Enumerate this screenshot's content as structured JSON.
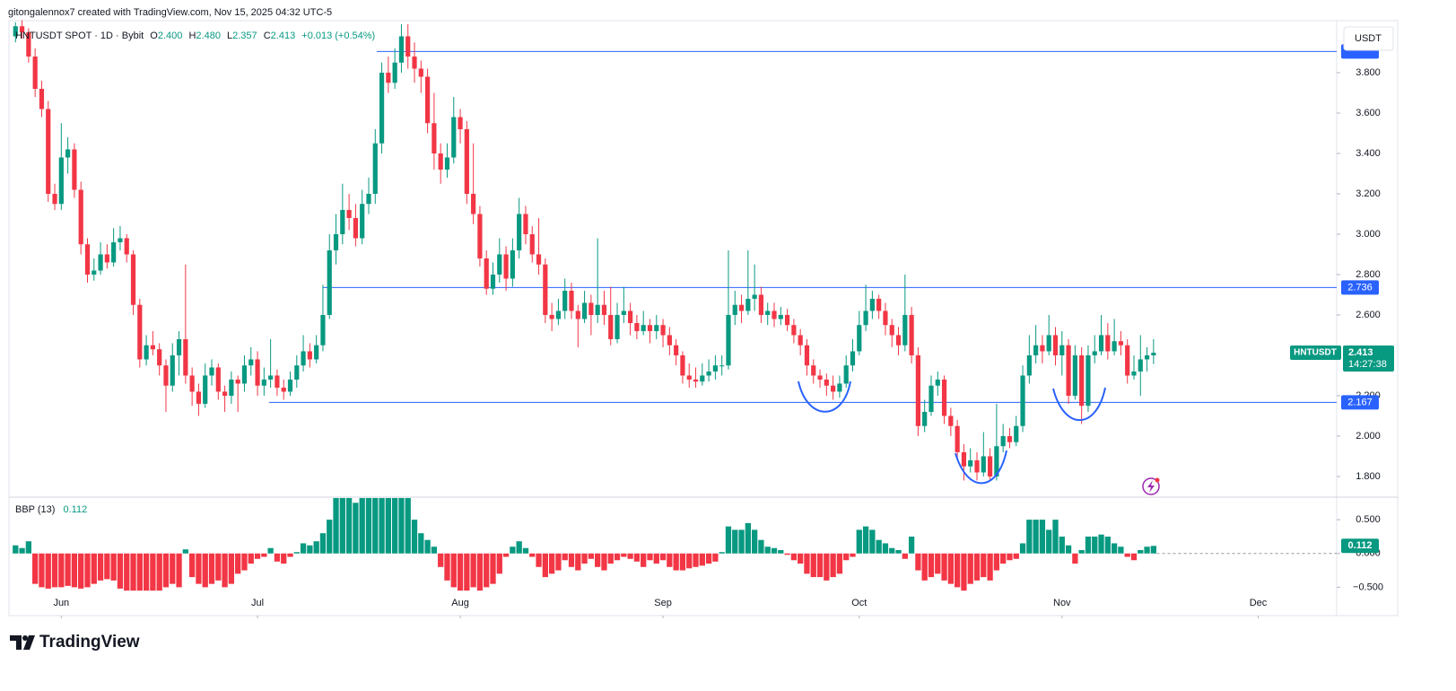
{
  "header": {
    "text": "gitongalennox7 created with TradingView.com, Nov 15, 2025 04:32 UTC-5"
  },
  "footer": {
    "brand": "TradingView"
  },
  "chart_data": [
    {
      "type": "candlestick",
      "title": "HNTUSDT SPOT · 1D · Bybit",
      "ohlc": [
        {
          "label": "O",
          "value": "2.400"
        },
        {
          "label": "H",
          "value": "2.480"
        },
        {
          "label": "L",
          "value": "2.357"
        },
        {
          "label": "C",
          "value": "2.413"
        }
      ],
      "change": "+0.013 (+0.54%)",
      "currency": "USDT",
      "last_price": {
        "symbol": "HNTUSDT",
        "value": "2.413",
        "countdown": "14:27:38"
      },
      "up_color": "#089981",
      "down_color": "#f23645",
      "line_color": "#2962ff",
      "grid": false,
      "xlim": [
        -1,
        202
      ],
      "ylim": [
        1.702,
        4.04
      ],
      "yticks": [
        {
          "value": 1.8,
          "label": "1.800"
        },
        {
          "value": 2.0,
          "label": "2.000"
        },
        {
          "value": 2.2,
          "label": "2.200"
        },
        {
          "value": 2.6,
          "label": "2.600"
        },
        {
          "value": 2.8,
          "label": "2.800"
        },
        {
          "value": 3.0,
          "label": "3.000"
        },
        {
          "value": 3.2,
          "label": "3.200"
        },
        {
          "value": 3.4,
          "label": "3.400"
        },
        {
          "value": 3.6,
          "label": "3.600"
        },
        {
          "value": 3.8,
          "label": "3.800"
        }
      ],
      "horizontal_lines": [
        3.905,
        2.736,
        2.167
      ],
      "candles": [
        [
          3.98,
          4.05,
          3.95,
          4.03
        ],
        [
          4.03,
          4.06,
          3.97,
          4.0
        ],
        [
          4.0,
          4.02,
          3.85,
          3.88
        ],
        [
          3.88,
          3.92,
          3.68,
          3.72
        ],
        [
          3.72,
          3.76,
          3.58,
          3.62
        ],
        [
          3.62,
          3.66,
          3.16,
          3.2
        ],
        [
          3.2,
          3.25,
          3.12,
          3.15
        ],
        [
          3.15,
          3.55,
          3.12,
          3.38
        ],
        [
          3.38,
          3.48,
          3.3,
          3.42
        ],
        [
          3.42,
          3.45,
          3.18,
          3.22
        ],
        [
          3.22,
          3.26,
          2.9,
          2.95
        ],
        [
          2.95,
          2.98,
          2.76,
          2.8
        ],
        [
          2.8,
          2.88,
          2.77,
          2.82
        ],
        [
          2.82,
          2.96,
          2.8,
          2.9
        ],
        [
          2.9,
          2.95,
          2.83,
          2.86
        ],
        [
          2.86,
          3.03,
          2.84,
          2.96
        ],
        [
          2.96,
          3.04,
          2.92,
          2.98
        ],
        [
          2.98,
          3.0,
          2.86,
          2.9
        ],
        [
          2.9,
          2.92,
          2.6,
          2.65
        ],
        [
          2.65,
          2.68,
          2.34,
          2.38
        ],
        [
          2.38,
          2.5,
          2.35,
          2.45
        ],
        [
          2.45,
          2.52,
          2.4,
          2.43
        ],
        [
          2.43,
          2.46,
          2.3,
          2.35
        ],
        [
          2.35,
          2.38,
          2.12,
          2.25
        ],
        [
          2.25,
          2.46,
          2.22,
          2.4
        ],
        [
          2.4,
          2.52,
          2.3,
          2.48
        ],
        [
          2.48,
          2.85,
          2.26,
          2.3
        ],
        [
          2.3,
          2.34,
          2.15,
          2.22
        ],
        [
          2.22,
          2.26,
          2.1,
          2.16
        ],
        [
          2.16,
          2.36,
          2.14,
          2.3
        ],
        [
          2.3,
          2.38,
          2.25,
          2.34
        ],
        [
          2.34,
          2.36,
          2.18,
          2.22
        ],
        [
          2.22,
          2.25,
          2.12,
          2.2
        ],
        [
          2.2,
          2.32,
          2.16,
          2.28
        ],
        [
          2.28,
          2.3,
          2.12,
          2.26
        ],
        [
          2.26,
          2.4,
          2.22,
          2.35
        ],
        [
          2.35,
          2.44,
          2.3,
          2.38
        ],
        [
          2.38,
          2.42,
          2.2,
          2.25
        ],
        [
          2.25,
          2.34,
          2.2,
          2.28
        ],
        [
          2.28,
          2.48,
          2.24,
          2.3
        ],
        [
          2.3,
          2.33,
          2.2,
          2.24
        ],
        [
          2.24,
          2.28,
          2.18,
          2.22
        ],
        [
          2.22,
          2.32,
          2.2,
          2.28
        ],
        [
          2.28,
          2.4,
          2.24,
          2.35
        ],
        [
          2.35,
          2.5,
          2.32,
          2.42
        ],
        [
          2.42,
          2.46,
          2.34,
          2.38
        ],
        [
          2.38,
          2.5,
          2.36,
          2.45
        ],
        [
          2.45,
          2.75,
          2.42,
          2.6
        ],
        [
          2.6,
          3.0,
          2.58,
          2.92
        ],
        [
          2.92,
          3.1,
          2.85,
          3.0
        ],
        [
          3.0,
          3.25,
          2.95,
          3.12
        ],
        [
          3.12,
          3.2,
          3.02,
          3.08
        ],
        [
          3.08,
          3.15,
          2.94,
          2.98
        ],
        [
          2.98,
          3.22,
          2.95,
          3.15
        ],
        [
          3.15,
          3.28,
          3.1,
          3.2
        ],
        [
          3.2,
          3.52,
          3.15,
          3.45
        ],
        [
          3.45,
          3.85,
          3.4,
          3.8
        ],
        [
          3.8,
          3.88,
          3.7,
          3.75
        ],
        [
          3.75,
          3.92,
          3.72,
          3.85
        ],
        [
          3.85,
          4.04,
          3.8,
          3.98
        ],
        [
          3.98,
          4.04,
          3.82,
          3.88
        ],
        [
          3.88,
          3.95,
          3.75,
          3.82
        ],
        [
          3.82,
          3.86,
          3.7,
          3.78
        ],
        [
          3.78,
          3.82,
          3.5,
          3.55
        ],
        [
          3.55,
          3.7,
          3.32,
          3.4
        ],
        [
          3.4,
          3.45,
          3.25,
          3.32
        ],
        [
          3.32,
          3.45,
          3.28,
          3.38
        ],
        [
          3.38,
          3.68,
          3.35,
          3.58
        ],
        [
          3.58,
          3.62,
          3.45,
          3.52
        ],
        [
          3.52,
          3.56,
          3.15,
          3.2
        ],
        [
          3.2,
          3.45,
          3.05,
          3.1
        ],
        [
          3.1,
          3.14,
          2.84,
          2.88
        ],
        [
          2.88,
          2.92,
          2.7,
          2.73
        ],
        [
          2.73,
          2.86,
          2.7,
          2.8
        ],
        [
          2.8,
          2.98,
          2.76,
          2.9
        ],
        [
          2.9,
          2.94,
          2.72,
          2.78
        ],
        [
          2.78,
          2.98,
          2.74,
          2.92
        ],
        [
          2.92,
          3.18,
          2.88,
          3.1
        ],
        [
          3.1,
          3.14,
          2.95,
          3.0
        ],
        [
          3.0,
          3.04,
          2.86,
          2.9
        ],
        [
          2.9,
          3.08,
          2.8,
          2.85
        ],
        [
          2.85,
          2.88,
          2.56,
          2.6
        ],
        [
          2.6,
          2.66,
          2.52,
          2.58
        ],
        [
          2.58,
          2.68,
          2.55,
          2.62
        ],
        [
          2.62,
          2.78,
          2.58,
          2.72
        ],
        [
          2.72,
          2.76,
          2.58,
          2.62
        ],
        [
          2.62,
          2.65,
          2.44,
          2.58
        ],
        [
          2.58,
          2.72,
          2.56,
          2.66
        ],
        [
          2.66,
          2.7,
          2.5,
          2.6
        ],
        [
          2.6,
          2.98,
          2.56,
          2.65
        ],
        [
          2.65,
          2.72,
          2.55,
          2.6
        ],
        [
          2.6,
          2.74,
          2.45,
          2.48
        ],
        [
          2.48,
          2.66,
          2.46,
          2.6
        ],
        [
          2.6,
          2.74,
          2.56,
          2.62
        ],
        [
          2.62,
          2.66,
          2.5,
          2.56
        ],
        [
          2.56,
          2.6,
          2.48,
          2.52
        ],
        [
          2.52,
          2.62,
          2.5,
          2.55
        ],
        [
          2.55,
          2.58,
          2.46,
          2.52
        ],
        [
          2.52,
          2.6,
          2.48,
          2.55
        ],
        [
          2.55,
          2.58,
          2.44,
          2.5
        ],
        [
          2.5,
          2.54,
          2.4,
          2.45
        ],
        [
          2.45,
          2.48,
          2.35,
          2.4
        ],
        [
          2.4,
          2.42,
          2.26,
          2.3
        ],
        [
          2.3,
          2.36,
          2.24,
          2.28
        ],
        [
          2.28,
          2.34,
          2.24,
          2.27
        ],
        [
          2.27,
          2.36,
          2.25,
          2.3
        ],
        [
          2.3,
          2.38,
          2.27,
          2.32
        ],
        [
          2.32,
          2.4,
          2.28,
          2.35
        ],
        [
          2.35,
          2.4,
          2.3,
          2.35
        ],
        [
          2.35,
          2.92,
          2.33,
          2.6
        ],
        [
          2.6,
          2.72,
          2.55,
          2.65
        ],
        [
          2.65,
          2.7,
          2.56,
          2.62
        ],
        [
          2.62,
          2.92,
          2.6,
          2.68
        ],
        [
          2.68,
          2.85,
          2.62,
          2.7
        ],
        [
          2.7,
          2.74,
          2.56,
          2.6
        ],
        [
          2.6,
          2.66,
          2.55,
          2.62
        ],
        [
          2.62,
          2.66,
          2.54,
          2.58
        ],
        [
          2.58,
          2.64,
          2.55,
          2.6
        ],
        [
          2.6,
          2.63,
          2.52,
          2.55
        ],
        [
          2.55,
          2.58,
          2.46,
          2.5
        ],
        [
          2.5,
          2.53,
          2.4,
          2.45
        ],
        [
          2.45,
          2.48,
          2.3,
          2.35
        ],
        [
          2.35,
          2.38,
          2.26,
          2.3
        ],
        [
          2.3,
          2.33,
          2.24,
          2.28
        ],
        [
          2.28,
          2.31,
          2.2,
          2.25
        ],
        [
          2.25,
          2.3,
          2.18,
          2.22
        ],
        [
          2.22,
          2.3,
          2.19,
          2.26
        ],
        [
          2.26,
          2.4,
          2.24,
          2.35
        ],
        [
          2.35,
          2.48,
          2.32,
          2.42
        ],
        [
          2.42,
          2.62,
          2.4,
          2.55
        ],
        [
          2.55,
          2.75,
          2.52,
          2.62
        ],
        [
          2.62,
          2.72,
          2.58,
          2.68
        ],
        [
          2.68,
          2.7,
          2.58,
          2.62
        ],
        [
          2.62,
          2.66,
          2.5,
          2.55
        ],
        [
          2.55,
          2.58,
          2.44,
          2.5
        ],
        [
          2.5,
          2.54,
          2.4,
          2.45
        ],
        [
          2.45,
          2.8,
          2.42,
          2.6
        ],
        [
          2.6,
          2.64,
          2.36,
          2.4
        ],
        [
          2.4,
          2.44,
          2.0,
          2.05
        ],
        [
          2.05,
          2.18,
          2.02,
          2.12
        ],
        [
          2.12,
          2.3,
          2.1,
          2.25
        ],
        [
          2.25,
          2.32,
          2.2,
          2.28
        ],
        [
          2.28,
          2.3,
          2.06,
          2.1
        ],
        [
          2.1,
          2.14,
          2.0,
          2.05
        ],
        [
          2.05,
          2.08,
          1.88,
          1.92
        ],
        [
          1.92,
          1.96,
          1.78,
          1.85
        ],
        [
          1.85,
          1.94,
          1.82,
          1.88
        ],
        [
          1.88,
          1.92,
          1.78,
          1.82
        ],
        [
          1.82,
          2.02,
          1.8,
          1.9
        ],
        [
          1.9,
          1.94,
          1.78,
          1.8
        ],
        [
          1.8,
          2.16,
          1.78,
          1.95
        ],
        [
          1.95,
          2.06,
          1.92,
          2.0
        ],
        [
          2.0,
          2.04,
          1.94,
          1.97
        ],
        [
          1.97,
          2.1,
          1.95,
          2.05
        ],
        [
          2.05,
          2.35,
          2.02,
          2.3
        ],
        [
          2.3,
          2.5,
          2.26,
          2.4
        ],
        [
          2.4,
          2.55,
          2.36,
          2.45
        ],
        [
          2.45,
          2.5,
          2.36,
          2.42
        ],
        [
          2.42,
          2.6,
          2.4,
          2.5
        ],
        [
          2.5,
          2.54,
          2.35,
          2.4
        ],
        [
          2.4,
          2.52,
          2.3,
          2.45
        ],
        [
          2.45,
          2.48,
          2.16,
          2.2
        ],
        [
          2.2,
          2.45,
          2.18,
          2.4
        ],
        [
          2.4,
          2.44,
          2.06,
          2.15
        ],
        [
          2.15,
          2.45,
          2.12,
          2.4
        ],
        [
          2.4,
          2.5,
          2.36,
          2.42
        ],
        [
          2.42,
          2.6,
          2.4,
          2.5
        ],
        [
          2.5,
          2.56,
          2.38,
          2.42
        ],
        [
          2.42,
          2.58,
          2.4,
          2.47
        ],
        [
          2.47,
          2.52,
          2.4,
          2.45
        ],
        [
          2.45,
          2.48,
          2.26,
          2.3
        ],
        [
          2.3,
          2.4,
          2.28,
          2.32
        ],
        [
          2.32,
          2.5,
          2.2,
          2.38
        ],
        [
          2.38,
          2.44,
          2.32,
          2.4
        ],
        [
          2.4,
          2.48,
          2.357,
          2.413
        ]
      ]
    },
    {
      "type": "bar",
      "title": "BBP (13)",
      "value_label": "0.112",
      "up_color": "#089981",
      "down_color": "#f23645",
      "xlim": [
        -1,
        202
      ],
      "ylim": [
        -0.92,
        0.82
      ],
      "yticks": [
        {
          "value": 0.5,
          "label": "0.500"
        },
        {
          "value": 0.0,
          "label": "0.000"
        },
        {
          "value": -0.5,
          "label": "−0.500"
        }
      ],
      "xticks": [
        {
          "value": 7,
          "label": "Jun"
        },
        {
          "value": 37,
          "label": "Jul"
        },
        {
          "value": 68,
          "label": "Aug"
        },
        {
          "value": 99,
          "label": "Sep"
        },
        {
          "value": 129,
          "label": "Oct"
        },
        {
          "value": 160,
          "label": "Nov"
        },
        {
          "value": 190,
          "label": "Dec"
        }
      ],
      "values": [
        0.12,
        0.08,
        0.18,
        -0.45,
        -0.5,
        -0.52,
        -0.5,
        -0.5,
        -0.48,
        -0.5,
        -0.52,
        -0.5,
        -0.45,
        -0.4,
        -0.38,
        -0.4,
        -0.52,
        -0.55,
        -0.55,
        -0.55,
        -0.55,
        -0.55,
        -0.55,
        -0.5,
        -0.45,
        -0.5,
        0.06,
        -0.35,
        -0.45,
        -0.5,
        -0.45,
        -0.4,
        -0.5,
        -0.45,
        -0.3,
        -0.25,
        -0.15,
        -0.08,
        -0.05,
        0.08,
        -0.12,
        -0.15,
        -0.05,
        0.02,
        0.15,
        0.12,
        0.18,
        0.3,
        0.5,
        0.82,
        0.82,
        0.82,
        0.75,
        0.82,
        0.82,
        0.82,
        0.82,
        0.82,
        0.82,
        0.82,
        0.82,
        0.5,
        0.3,
        0.2,
        0.1,
        -0.2,
        -0.4,
        -0.5,
        -0.55,
        -0.55,
        -0.5,
        -0.55,
        -0.5,
        -0.45,
        -0.3,
        -0.05,
        0.1,
        0.18,
        0.08,
        -0.05,
        -0.2,
        -0.35,
        -0.3,
        -0.25,
        -0.1,
        -0.2,
        -0.25,
        -0.15,
        -0.08,
        -0.2,
        -0.25,
        -0.15,
        -0.1,
        -0.05,
        -0.08,
        -0.12,
        -0.2,
        -0.1,
        -0.15,
        -0.1,
        -0.2,
        -0.25,
        -0.25,
        -0.22,
        -0.2,
        -0.18,
        -0.15,
        -0.12,
        0.02,
        0.4,
        0.35,
        0.35,
        0.45,
        0.35,
        0.2,
        0.1,
        0.08,
        0.05,
        -0.02,
        -0.1,
        -0.15,
        -0.3,
        -0.35,
        -0.35,
        -0.4,
        -0.35,
        -0.3,
        -0.1,
        -0.05,
        0.35,
        0.4,
        0.35,
        0.2,
        0.15,
        0.08,
        0.05,
        -0.08,
        0.25,
        -0.25,
        -0.4,
        -0.35,
        -0.3,
        -0.4,
        -0.45,
        -0.5,
        -0.55,
        -0.45,
        -0.4,
        -0.35,
        -0.4,
        -0.25,
        -0.15,
        -0.1,
        -0.08,
        0.15,
        0.5,
        0.5,
        0.5,
        0.35,
        0.5,
        0.25,
        0.12,
        -0.15,
        0.05,
        0.25,
        0.25,
        0.28,
        0.25,
        0.15,
        0.1,
        -0.05,
        -0.1,
        0.05,
        0.1,
        0.112
      ]
    }
  ]
}
